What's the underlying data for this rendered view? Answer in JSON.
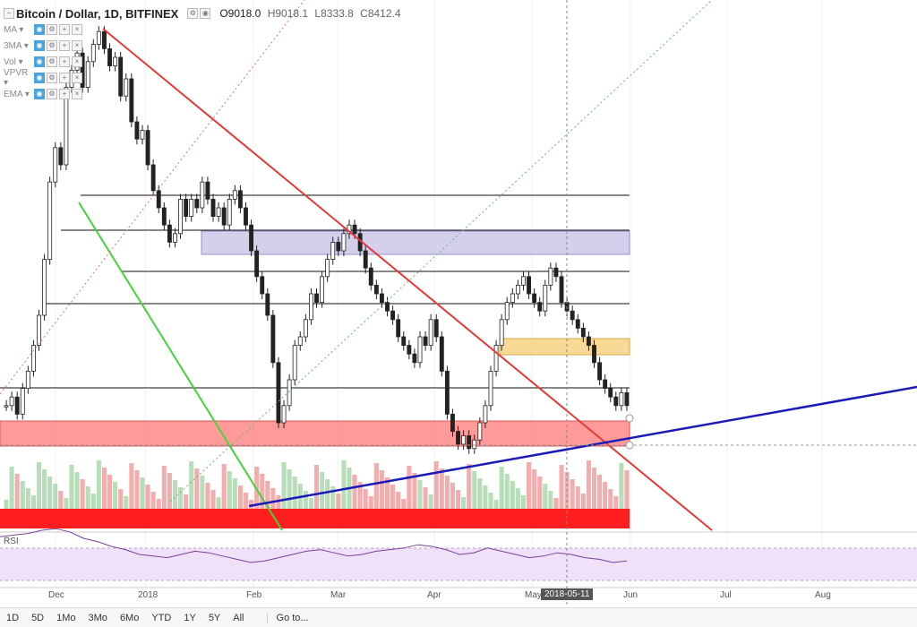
{
  "header": {
    "symbol": "Bitcoin / Dollar, 1D, BITFINEX",
    "open": "O9018.0",
    "high": "H9018.1",
    "low": "L8333.8",
    "close": "C8412.4"
  },
  "indicators": [
    "MA",
    "3MA",
    "Vol",
    "VPVR",
    "EMA"
  ],
  "rsi_label": "RSI",
  "x_labels": [
    {
      "text": "Dec"
    },
    {
      "text": "2018"
    },
    {
      "text": "Feb"
    },
    {
      "text": "Mar"
    },
    {
      "text": "Apr"
    },
    {
      "text": "May"
    },
    {
      "text": "Jun"
    },
    {
      "text": "Jul"
    },
    {
      "text": "Aug"
    }
  ],
  "crosshair_date": "2018-05-11",
  "timeframes": [
    "1D",
    "5D",
    "1Mo",
    "3Mo",
    "6Mo",
    "YTD",
    "1Y",
    "5Y",
    "All"
  ],
  "goto": "Go to...",
  "colors": {
    "up": "#4caf50",
    "down": "#222222",
    "trend_red": "#e53935",
    "trend_blue": "#1a1ab8",
    "trend_green": "#43d43a",
    "zone_purple": "#b8b0e0",
    "zone_orange": "#f5c96a",
    "zone_red": "#ff6f6f",
    "rsi": "#7b3f9a"
  },
  "chart_data": {
    "type": "candlestick",
    "price_series": [
      14,
      16,
      12,
      18,
      22,
      28,
      35,
      48,
      66,
      74,
      70,
      88,
      92,
      96,
      88,
      94,
      98,
      101,
      97,
      93,
      95,
      86,
      90,
      80,
      76,
      78,
      70,
      64,
      60,
      56,
      52,
      54,
      62,
      58,
      62,
      60,
      66,
      62,
      58,
      60,
      56,
      62,
      64,
      60,
      56,
      50,
      44,
      40,
      35,
      24,
      10,
      14,
      20,
      28,
      30,
      34,
      40,
      38,
      44,
      48,
      52,
      50,
      54,
      56,
      54,
      50,
      46,
      42,
      40,
      38,
      36,
      34,
      30,
      28,
      26,
      24,
      30,
      28,
      34,
      30,
      22,
      12,
      8,
      5,
      7,
      4,
      6,
      10,
      14,
      22,
      28,
      34,
      38,
      40,
      42,
      44,
      40,
      38,
      36,
      42,
      46,
      44,
      38,
      36,
      34,
      32,
      30,
      28,
      24,
      20,
      18,
      16,
      14,
      17,
      14
    ],
    "horizontal_levels": [
      0.1,
      0.34,
      0.36,
      0.53,
      0.7,
      0.78
    ],
    "rsi_series": [
      62,
      64,
      66,
      70,
      72,
      68,
      60,
      56,
      50,
      46,
      40,
      38,
      36,
      40,
      44,
      42,
      38,
      34,
      30,
      32,
      36,
      40,
      44,
      46,
      42,
      38,
      40,
      44,
      46,
      48,
      52,
      50,
      46,
      40,
      42,
      48,
      44,
      40,
      36,
      38,
      42,
      40,
      36,
      34,
      30,
      32
    ]
  }
}
